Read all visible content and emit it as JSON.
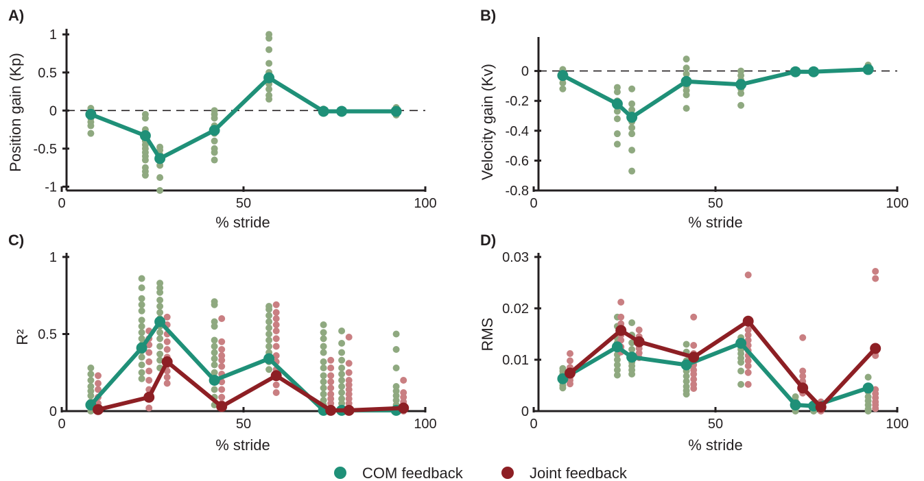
{
  "colors": {
    "com": "#1f9078",
    "joint": "#8d1f24",
    "com_scatter": "#8fa980",
    "joint_scatter": "#c97f82",
    "axis": "#231f20"
  },
  "legend": [
    {
      "label": "COM feedback",
      "color_key": "com"
    },
    {
      "label": "Joint feedback",
      "color_key": "joint"
    }
  ],
  "chart_data": [
    {
      "panel": "A)",
      "type": "scatter",
      "xlabel": "% stride",
      "ylabel": "Position gain (Kp)",
      "xlim": [
        0,
        100
      ],
      "ylim": [
        -1.05,
        1.02
      ],
      "xticks": [
        0,
        50,
        100
      ],
      "yticks": [
        -1,
        -0.5,
        0,
        0.5,
        1
      ],
      "ytick_labels": [
        "-1",
        "-0.5",
        "0",
        "0.5",
        "1"
      ],
      "zero_line": true,
      "series": [
        {
          "name": "COM feedback",
          "x": [
            8,
            23,
            27,
            42,
            57,
            72,
            77,
            92
          ],
          "values": [
            -0.05,
            -0.33,
            -0.63,
            -0.26,
            0.43,
            -0.01,
            -0.01,
            -0.01
          ]
        }
      ],
      "scatter": [
        {
          "series": "COM feedback",
          "x": 8,
          "values": [
            0.03,
            0.0,
            -0.05,
            -0.1,
            -0.15,
            -0.2,
            -0.3
          ]
        },
        {
          "series": "COM feedback",
          "x": 23,
          "values": [
            -0.05,
            -0.1,
            -0.25,
            -0.4,
            -0.45,
            -0.5,
            -0.55,
            -0.6,
            -0.65,
            -0.75,
            -0.8,
            -0.85
          ]
        },
        {
          "series": "COM feedback",
          "x": 27,
          "values": [
            -0.48,
            -0.52,
            -0.58,
            -0.65,
            -0.72,
            -0.88,
            -1.05
          ]
        },
        {
          "series": "COM feedback",
          "x": 42,
          "values": [
            0.0,
            -0.05,
            -0.1,
            -0.2,
            -0.3,
            -0.4,
            -0.5,
            -0.55,
            -0.65
          ]
        },
        {
          "series": "COM feedback",
          "x": 57,
          "values": [
            1.0,
            0.95,
            0.8,
            0.62,
            0.5,
            0.35,
            0.28,
            0.2,
            0.15
          ]
        },
        {
          "series": "COM feedback",
          "x": 72,
          "values": [
            0.02,
            0.0,
            -0.03
          ]
        },
        {
          "series": "COM feedback",
          "x": 77,
          "values": [
            0.01,
            -0.02
          ]
        },
        {
          "series": "COM feedback",
          "x": 92,
          "values": [
            0.04,
            0.02,
            0.0,
            -0.03,
            -0.06
          ]
        }
      ]
    },
    {
      "panel": "B)",
      "type": "scatter",
      "xlabel": "% stride",
      "ylabel": "Velocity gain (Kv)",
      "xlim": [
        0,
        100
      ],
      "ylim": [
        -0.8,
        0.2
      ],
      "xticks": [
        0,
        50,
        100
      ],
      "yticks": [
        -0.8,
        -0.6,
        -0.4,
        -0.2,
        0
      ],
      "ytick_labels": [
        "-0.8",
        "-0.6",
        "-0.4",
        "-0.2",
        "0"
      ],
      "zero_line": true,
      "series": [
        {
          "name": "COM feedback",
          "x": [
            8,
            23,
            27,
            42,
            57,
            72,
            77,
            92
          ],
          "values": [
            -0.03,
            -0.22,
            -0.31,
            -0.07,
            -0.09,
            -0.005,
            -0.005,
            0.01
          ]
        }
      ],
      "scatter": [
        {
          "series": "COM feedback",
          "x": 8,
          "values": [
            0.01,
            -0.02,
            -0.05,
            -0.08,
            -0.12
          ]
        },
        {
          "series": "COM feedback",
          "x": 23,
          "values": [
            -0.11,
            -0.14,
            -0.2,
            -0.24,
            -0.27,
            -0.32,
            -0.42,
            -0.49
          ]
        },
        {
          "series": "COM feedback",
          "x": 27,
          "values": [
            -0.12,
            -0.22,
            -0.26,
            -0.3,
            -0.34,
            -0.38,
            -0.42,
            -0.53,
            -0.67
          ]
        },
        {
          "series": "COM feedback",
          "x": 42,
          "values": [
            0.08,
            0.02,
            -0.02,
            -0.06,
            -0.1,
            -0.13,
            -0.16,
            -0.25
          ]
        },
        {
          "series": "COM feedback",
          "x": 57,
          "values": [
            0.0,
            -0.03,
            -0.06,
            -0.09,
            -0.12,
            -0.15,
            -0.23
          ]
        },
        {
          "series": "COM feedback",
          "x": 72,
          "values": [
            0.0,
            -0.01
          ]
        },
        {
          "series": "COM feedback",
          "x": 77,
          "values": [
            0.0,
            -0.01
          ]
        },
        {
          "series": "COM feedback",
          "x": 92,
          "values": [
            0.04,
            0.01,
            0.0
          ]
        }
      ]
    },
    {
      "panel": "C)",
      "type": "scatter",
      "xlabel": "% stride",
      "ylabel": "R²",
      "xlim": [
        0,
        100
      ],
      "ylim": [
        0,
        1
      ],
      "xticks": [
        0,
        50,
        100
      ],
      "yticks": [
        0,
        0.5,
        1
      ],
      "ytick_labels": [
        "0",
        "0.5",
        "1"
      ],
      "zero_line": false,
      "series": [
        {
          "name": "COM feedback",
          "x": [
            8,
            22,
            27,
            42,
            57,
            72,
            77,
            92
          ],
          "values": [
            0.04,
            0.41,
            0.58,
            0.2,
            0.34,
            0.005,
            0.005,
            0.005
          ]
        },
        {
          "name": "Joint feedback",
          "x": [
            10,
            24,
            29,
            44,
            59,
            74,
            79,
            94
          ],
          "values": [
            0.01,
            0.09,
            0.32,
            0.03,
            0.23,
            0.005,
            0.005,
            0.02
          ]
        }
      ],
      "scatter": [
        {
          "series": "COM feedback",
          "x": 8,
          "values": [
            0.28,
            0.24,
            0.2,
            0.16,
            0.13,
            0.1,
            0.06,
            0.03,
            0.0
          ]
        },
        {
          "series": "Joint feedback",
          "x": 10,
          "values": [
            0.23,
            0.18,
            0.14,
            0.09,
            0.05,
            0.02,
            0.0
          ]
        },
        {
          "series": "COM feedback",
          "x": 22,
          "values": [
            0.86,
            0.8,
            0.73,
            0.69,
            0.65,
            0.59,
            0.55,
            0.51,
            0.47,
            0.43,
            0.39,
            0.35,
            0.3,
            0.25,
            0.21
          ]
        },
        {
          "series": "Joint feedback",
          "x": 24,
          "values": [
            0.52,
            0.47,
            0.43,
            0.38,
            0.32,
            0.26,
            0.2,
            0.14,
            0.08,
            0.02
          ]
        },
        {
          "series": "COM feedback",
          "x": 27,
          "values": [
            0.83,
            0.8,
            0.77,
            0.72,
            0.68,
            0.64,
            0.6,
            0.55,
            0.51,
            0.47,
            0.42,
            0.37,
            0.33,
            0.28
          ]
        },
        {
          "series": "Joint feedback",
          "x": 29,
          "values": [
            0.61,
            0.56,
            0.5,
            0.45,
            0.4,
            0.35,
            0.3,
            0.26,
            0.22,
            0.18
          ]
        },
        {
          "series": "COM feedback",
          "x": 42,
          "values": [
            0.71,
            0.69,
            0.58,
            0.55,
            0.46,
            0.42,
            0.38,
            0.34,
            0.3,
            0.25,
            0.2,
            0.14,
            0.09,
            0.04
          ]
        },
        {
          "series": "Joint feedback",
          "x": 44,
          "values": [
            0.6,
            0.45,
            0.4,
            0.36,
            0.33,
            0.29,
            0.24,
            0.19,
            0.14,
            0.09,
            0.05
          ]
        },
        {
          "series": "COM feedback",
          "x": 57,
          "values": [
            0.68,
            0.66,
            0.62,
            0.58,
            0.54,
            0.5,
            0.46,
            0.42,
            0.38,
            0.32,
            0.27
          ]
        },
        {
          "series": "Joint feedback",
          "x": 59,
          "values": [
            0.69,
            0.64,
            0.6,
            0.56,
            0.52,
            0.47,
            0.42,
            0.36,
            0.32,
            0.27,
            0.22,
            0.17,
            0.12
          ]
        },
        {
          "series": "COM feedback",
          "x": 72,
          "values": [
            0.56,
            0.51,
            0.47,
            0.42,
            0.38,
            0.32,
            0.28,
            0.23,
            0.19,
            0.15,
            0.11,
            0.07,
            0.04,
            0.0
          ]
        },
        {
          "series": "Joint feedback",
          "x": 74,
          "values": [
            0.33,
            0.28,
            0.23,
            0.19,
            0.15,
            0.11,
            0.08,
            0.05,
            0.02,
            0.0
          ]
        },
        {
          "series": "COM feedback",
          "x": 77,
          "values": [
            0.52,
            0.44,
            0.38,
            0.33,
            0.28,
            0.24,
            0.2,
            0.16,
            0.12,
            0.08,
            0.05,
            0.02
          ]
        },
        {
          "series": "Joint feedback",
          "x": 79,
          "values": [
            0.48,
            0.31,
            0.25,
            0.2,
            0.17,
            0.14,
            0.11,
            0.08,
            0.05,
            0.02
          ]
        },
        {
          "series": "COM feedback",
          "x": 92,
          "values": [
            0.5,
            0.4,
            0.28,
            0.16,
            0.13,
            0.1,
            0.07,
            0.04,
            0.01
          ]
        },
        {
          "series": "Joint feedback",
          "x": 94,
          "values": [
            0.2,
            0.12,
            0.09,
            0.06,
            0.04,
            0.02,
            0.0
          ]
        }
      ]
    },
    {
      "panel": "D)",
      "type": "scatter",
      "xlabel": "% stride",
      "ylabel": "RMS",
      "xlim": [
        0,
        100
      ],
      "ylim": [
        0,
        0.03
      ],
      "xticks": [
        0,
        50,
        100
      ],
      "yticks": [
        0,
        0.01,
        0.02,
        0.03
      ],
      "ytick_labels": [
        "0",
        "0.01",
        "0.02",
        "0.03"
      ],
      "zero_line": false,
      "series": [
        {
          "name": "COM feedback",
          "x": [
            8,
            23,
            27,
            42,
            57,
            72,
            77,
            92
          ],
          "values": [
            0.0063,
            0.0125,
            0.0105,
            0.009,
            0.0132,
            0.0012,
            0.001,
            0.0045
          ]
        },
        {
          "name": "Joint feedback",
          "x": [
            10,
            24,
            29,
            44,
            59,
            74,
            79,
            94
          ],
          "values": [
            0.0074,
            0.0157,
            0.0135,
            0.0105,
            0.0175,
            0.0045,
            0.0008,
            0.0122
          ]
        }
      ],
      "scatter": [
        {
          "series": "COM feedback",
          "x": 8,
          "values": [
            0.0083,
            0.0078,
            0.0072,
            0.0067,
            0.0061,
            0.0056,
            0.005,
            0.0045
          ]
        },
        {
          "series": "Joint feedback",
          "x": 10,
          "values": [
            0.0112,
            0.0098,
            0.0085,
            0.0078,
            0.0072,
            0.0066,
            0.006,
            0.0053
          ]
        },
        {
          "series": "COM feedback",
          "x": 23,
          "values": [
            0.0183,
            0.0165,
            0.0142,
            0.0133,
            0.0121,
            0.011,
            0.01,
            0.009,
            0.008,
            0.007
          ]
        },
        {
          "series": "Joint feedback",
          "x": 24,
          "values": [
            0.0212,
            0.0183,
            0.017,
            0.0158,
            0.0148,
            0.0138,
            0.0125,
            0.0115
          ]
        },
        {
          "series": "COM feedback",
          "x": 27,
          "values": [
            0.0172,
            0.0148,
            0.0133,
            0.012,
            0.011,
            0.0102,
            0.0095,
            0.0088,
            0.008,
            0.0072
          ]
        },
        {
          "series": "Joint feedback",
          "x": 29,
          "values": [
            0.0158,
            0.0145,
            0.0132,
            0.0122,
            0.0113,
            0.0104
          ]
        },
        {
          "series": "COM feedback",
          "x": 42,
          "values": [
            0.013,
            0.0115,
            0.0098,
            0.0088,
            0.0078,
            0.0068,
            0.0058,
            0.0048,
            0.004,
            0.0033
          ]
        },
        {
          "series": "Joint feedback",
          "x": 44,
          "values": [
            0.0183,
            0.0128,
            0.0112,
            0.0098,
            0.009,
            0.008,
            0.0072,
            0.0062,
            0.0052,
            0.0044
          ]
        },
        {
          "series": "COM feedback",
          "x": 57,
          "values": [
            0.0143,
            0.0135,
            0.0128,
            0.012,
            0.0112,
            0.0103,
            0.0095,
            0.0078,
            0.0052
          ]
        },
        {
          "series": "Joint feedback",
          "x": 59,
          "values": [
            0.0265,
            0.0158,
            0.0148,
            0.0138,
            0.0128,
            0.0118,
            0.0108,
            0.0098,
            0.0088,
            0.0075,
            0.0052
          ]
        },
        {
          "series": "COM feedback",
          "x": 72,
          "values": [
            0.0028,
            0.002,
            0.0013,
            0.0006,
            0.0
          ]
        },
        {
          "series": "Joint feedback",
          "x": 74,
          "values": [
            0.0143,
            0.0078,
            0.0068,
            0.0058,
            0.0045,
            0.0035
          ]
        },
        {
          "series": "COM feedback",
          "x": 77,
          "values": [
            0.0012,
            0.0007,
            0.0003,
            0.0
          ]
        },
        {
          "series": "Joint feedback",
          "x": 79,
          "values": [
            0.0018,
            0.0012,
            0.0008,
            0.0004,
            0.0
          ]
        },
        {
          "series": "COM feedback",
          "x": 92,
          "values": [
            0.0066,
            0.0048,
            0.0038,
            0.0028,
            0.002,
            0.0012,
            0.0004,
            0.0
          ]
        },
        {
          "series": "Joint feedback",
          "x": 94,
          "values": [
            0.0272,
            0.0258,
            0.0115,
            0.0108,
            0.0042,
            0.0034,
            0.0026,
            0.0018,
            0.0012,
            0.0005
          ]
        }
      ]
    }
  ]
}
